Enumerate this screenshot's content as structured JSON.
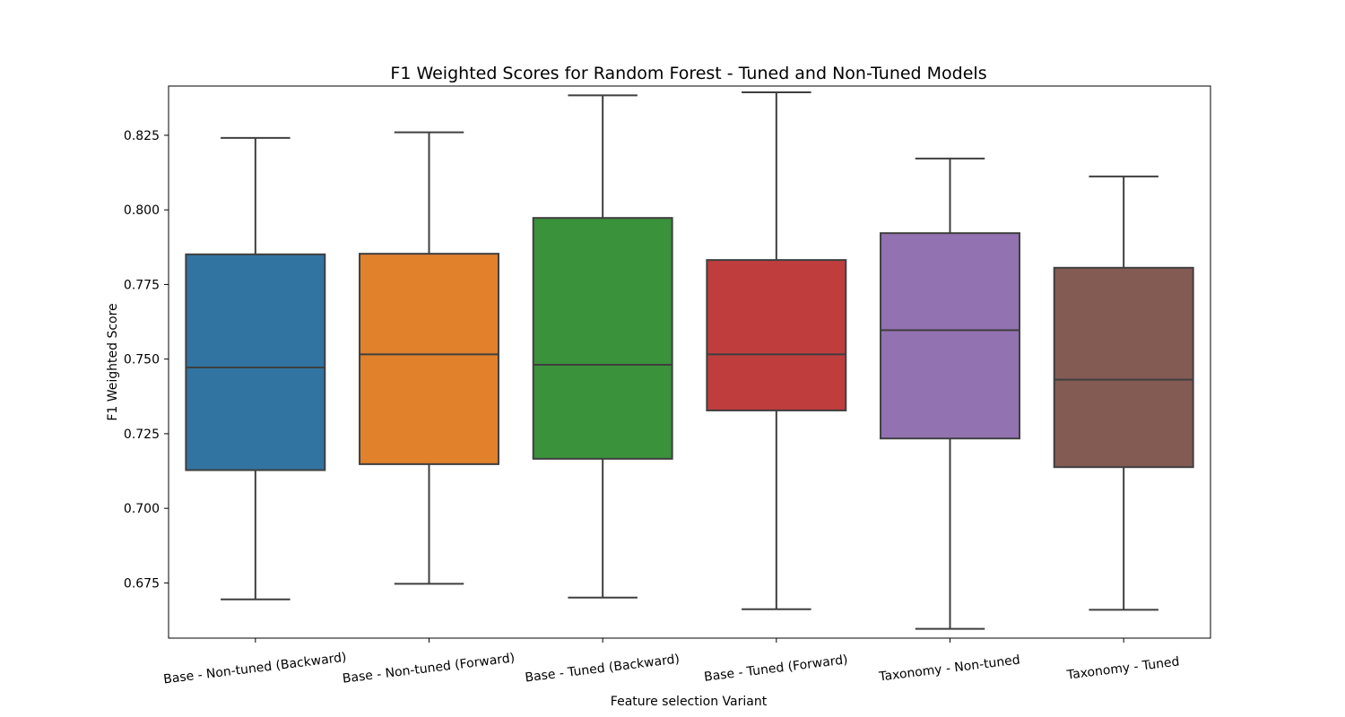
{
  "chart_data": {
    "type": "box",
    "title": "F1 Weighted Scores for Random Forest - Tuned and Non-Tuned Models",
    "xlabel": "Feature selection Variant",
    "ylabel": "F1 Weighted Score",
    "ylim": [
      0.6565,
      0.8415
    ],
    "yticks": [
      "0.675",
      "0.700",
      "0.725",
      "0.750",
      "0.775",
      "0.800",
      "0.825"
    ],
    "ytick_values": [
      0.675,
      0.7,
      0.725,
      0.75,
      0.775,
      0.8,
      0.825
    ],
    "grid": false,
    "categories": [
      "Base - Non-tuned (Backward)",
      "Base - Non-tuned (Forward)",
      "Base - Tuned (Backward)",
      "Base - Tuned (Forward)",
      "Taxonomy - Non-tuned",
      "Taxonomy - Tuned"
    ],
    "boxes": [
      {
        "whisker_low": 0.6695,
        "q1": 0.7128,
        "median": 0.7472,
        "q3": 0.7851,
        "whisker_high": 0.8241
      },
      {
        "whisker_low": 0.6747,
        "q1": 0.7148,
        "median": 0.7516,
        "q3": 0.7853,
        "whisker_high": 0.826
      },
      {
        "whisker_low": 0.6701,
        "q1": 0.7166,
        "median": 0.7481,
        "q3": 0.7973,
        "whisker_high": 0.8384
      },
      {
        "whisker_low": 0.6662,
        "q1": 0.7328,
        "median": 0.7516,
        "q3": 0.7832,
        "whisker_high": 0.8394
      },
      {
        "whisker_low": 0.6596,
        "q1": 0.7234,
        "median": 0.7597,
        "q3": 0.7922,
        "whisker_high": 0.8172
      },
      {
        "whisker_low": 0.666,
        "q1": 0.7138,
        "median": 0.7431,
        "q3": 0.7806,
        "whisker_high": 0.8112
      }
    ],
    "colors": [
      "#3274a1",
      "#e1812c",
      "#3a923a",
      "#c03d3e",
      "#9372b2",
      "#845b53"
    ],
    "line_color": "#3f3f3f"
  }
}
